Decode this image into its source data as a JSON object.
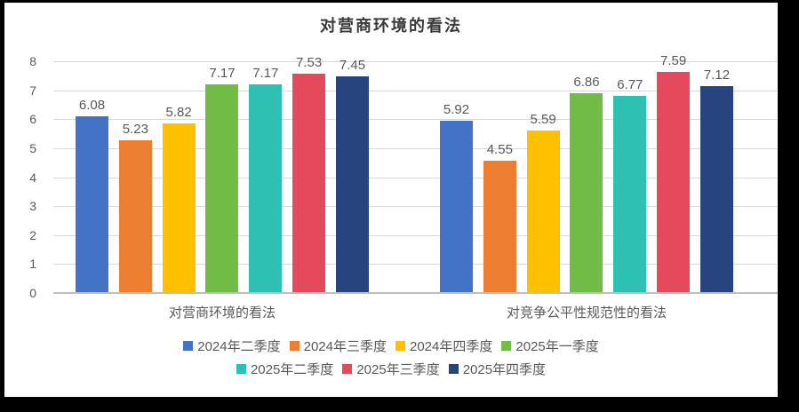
{
  "chart_data": {
    "type": "bar",
    "title": "对营商环境的看法",
    "categories": [
      "对营商环境的看法",
      "对竞争公平性规范性的看法"
    ],
    "series": [
      {
        "name": "2024年二季度",
        "color": "#4472C4",
        "values": [
          6.08,
          5.92
        ]
      },
      {
        "name": "2024年三季度",
        "color": "#ED7D31",
        "values": [
          5.23,
          4.55
        ]
      },
      {
        "name": "2024年四季度",
        "color": "#FFC000",
        "values": [
          5.82,
          5.59
        ]
      },
      {
        "name": "2025年一季度",
        "color": "#70BC46",
        "values": [
          7.17,
          6.86
        ]
      },
      {
        "name": "2025年二季度",
        "color": "#2EC0B2",
        "values": [
          7.17,
          6.77
        ]
      },
      {
        "name": "2025年三季度",
        "color": "#E4495C",
        "values": [
          7.53,
          7.59
        ]
      },
      {
        "name": "2025年四季度",
        "color": "#27447E",
        "values": [
          7.45,
          7.12
        ]
      }
    ],
    "ylim": [
      0,
      8
    ],
    "yticks": [
      0,
      1,
      2,
      3,
      4,
      5,
      6,
      7,
      8
    ],
    "grid": true,
    "value_labels": true,
    "legend_position": "bottom",
    "legend_items_row1": 4,
    "colors": {
      "text_gray": "#595959",
      "gridline": "#d9d9d9",
      "axis_line": "#bfbfbf",
      "title_text": "#3a3a3a",
      "frame_border": "#000000",
      "background": "#ffffff"
    }
  }
}
